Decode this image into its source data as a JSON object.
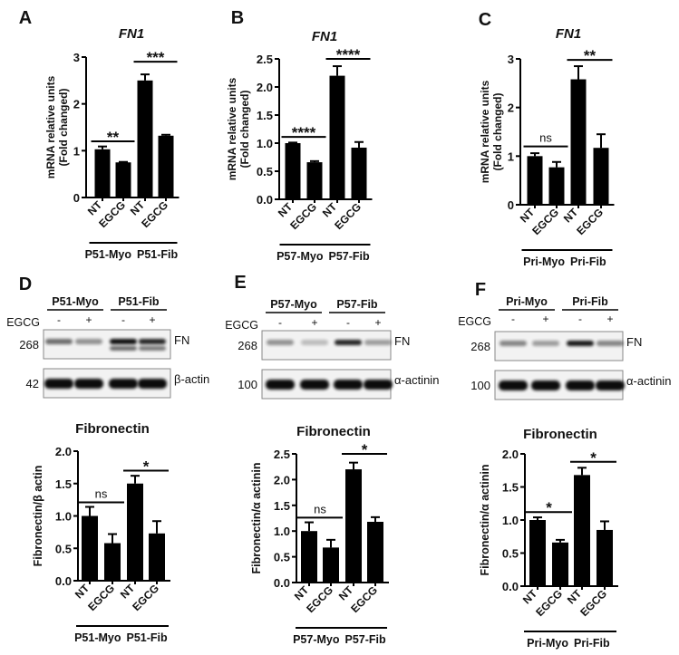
{
  "panels": {
    "A": {
      "letter": "A"
    },
    "B": {
      "letter": "B"
    },
    "C": {
      "letter": "C"
    },
    "D": {
      "letter": "D"
    },
    "E": {
      "letter": "E"
    },
    "F": {
      "letter": "F"
    }
  },
  "blots": [
    {
      "panel": "D",
      "groups": [
        "P51-Myo",
        "P51-Fib"
      ],
      "treatment_label": "EGCG",
      "lanes": [
        "-",
        "+",
        "-",
        "+"
      ],
      "rows": [
        {
          "marker": "268",
          "protein": "FN"
        },
        {
          "marker": "42",
          "protein": "β-actin"
        }
      ]
    },
    {
      "panel": "E",
      "groups": [
        "P57-Myo",
        "P57-Fib"
      ],
      "treatment_label": "EGCG",
      "lanes": [
        "-",
        "+",
        "-",
        "+"
      ],
      "rows": [
        {
          "marker": "268",
          "protein": "FN"
        },
        {
          "marker": "100",
          "protein": "α-actinin"
        }
      ]
    },
    {
      "panel": "F",
      "groups": [
        "Pri-Myo",
        "Pri-Fib"
      ],
      "treatment_label": "EGCG",
      "lanes": [
        "-",
        "+",
        "-",
        "+"
      ],
      "rows": [
        {
          "marker": "268",
          "protein": "FN"
        },
        {
          "marker": "100",
          "protein": "α-actinin"
        }
      ]
    }
  ],
  "chart_data": [
    {
      "panel": "A",
      "type": "bar",
      "title": "FN1",
      "title_italic": true,
      "ylabel": [
        "mRNA relative units",
        "(Fold changed)"
      ],
      "ylim": [
        0,
        3
      ],
      "yticks": [
        "0",
        "1",
        "2",
        "3"
      ],
      "categories": [
        "NT",
        "EGCG",
        "NT",
        "EGCG"
      ],
      "groups": [
        "P51-Myo",
        "P51-Fib"
      ],
      "values": [
        1.03,
        0.75,
        2.5,
        1.32
      ],
      "errors": [
        0.06,
        0.01,
        0.13,
        0.02
      ],
      "significance": [
        {
          "label": "**",
          "level": 1.2
        },
        {
          "label": "***",
          "level": 2.9
        }
      ]
    },
    {
      "panel": "B",
      "type": "bar",
      "title": "FN1",
      "title_italic": true,
      "ylabel": [
        "mRNA relative units",
        "(Fold changed)"
      ],
      "ylim": [
        0,
        2.5
      ],
      "yticks": [
        "0.0",
        "0.5",
        "1.0",
        "1.5",
        "2.0",
        "2.5"
      ],
      "categories": [
        "NT",
        "EGCG",
        "NT",
        "EGCG"
      ],
      "groups": [
        "P57-Myo",
        "P57-Fib"
      ],
      "values": [
        1.0,
        0.66,
        2.2,
        0.92
      ],
      "errors": [
        0.01,
        0.02,
        0.17,
        0.1
      ],
      "significance": [
        {
          "label": "****",
          "level": 1.11
        },
        {
          "label": "****",
          "level": 2.5
        }
      ]
    },
    {
      "panel": "C",
      "type": "bar",
      "title": "FN1",
      "title_italic": true,
      "ylabel": [
        "mRNA relative units",
        "(Fold changed)"
      ],
      "ylim": [
        0,
        3
      ],
      "yticks": [
        "0",
        "1",
        "2",
        "3"
      ],
      "categories": [
        "NT",
        "EGCG",
        "NT",
        "EGCG"
      ],
      "groups": [
        "Pri-Myo",
        "Pri-Fib"
      ],
      "values": [
        1.0,
        0.77,
        2.58,
        1.17
      ],
      "errors": [
        0.06,
        0.11,
        0.27,
        0.28
      ],
      "significance": [
        {
          "label": "ns",
          "level": 1.2
        },
        {
          "label": "**",
          "level": 2.98
        }
      ]
    },
    {
      "panel": "D",
      "type": "bar",
      "title": "Fibronectin",
      "title_italic": false,
      "ylabel": [
        "Fibronectin/β actin"
      ],
      "ylim": [
        0,
        2
      ],
      "yticks": [
        "0.0",
        "0.5",
        "1.0",
        "1.5",
        "2.0"
      ],
      "categories": [
        "NT",
        "EGCG",
        "NT",
        "EGCG"
      ],
      "groups": [
        "P51-Myo",
        "P51-Fib"
      ],
      "values": [
        1.0,
        0.58,
        1.5,
        0.73
      ],
      "errors": [
        0.14,
        0.14,
        0.12,
        0.19
      ],
      "significance": [
        {
          "label": "ns",
          "level": 1.21
        },
        {
          "label": "*",
          "level": 1.7
        }
      ]
    },
    {
      "panel": "E",
      "type": "bar",
      "title": "Fibronectin",
      "title_italic": false,
      "ylabel": [
        "Fibronectin/α actinin"
      ],
      "ylim": [
        0,
        2.5
      ],
      "yticks": [
        "0.0",
        "0.5",
        "1.0",
        "1.5",
        "2.0",
        "2.5"
      ],
      "categories": [
        "NT",
        "EGCG",
        "NT",
        "EGCG"
      ],
      "groups": [
        "P57-Myo",
        "P57-Fib"
      ],
      "values": [
        1.0,
        0.68,
        2.2,
        1.18
      ],
      "errors": [
        0.17,
        0.15,
        0.13,
        0.09
      ],
      "significance": [
        {
          "label": "ns",
          "level": 1.26
        },
        {
          "label": "*",
          "level": 2.5
        }
      ]
    },
    {
      "panel": "F",
      "type": "bar",
      "title": "Fibronectin",
      "title_italic": false,
      "ylabel": [
        "Fibronectin/α actinin"
      ],
      "ylim": [
        0,
        2
      ],
      "yticks": [
        "0.0",
        "0.5",
        "1.0",
        "1.5",
        "2.0"
      ],
      "categories": [
        "NT",
        "EGCG",
        "NT",
        "EGCG"
      ],
      "groups": [
        "Pri-Myo",
        "Pri-Fib"
      ],
      "values": [
        1.0,
        0.66,
        1.68,
        0.85
      ],
      "errors": [
        0.04,
        0.04,
        0.11,
        0.13
      ],
      "significance": [
        {
          "label": "*",
          "level": 1.12
        },
        {
          "label": "*",
          "level": 1.88
        }
      ]
    }
  ],
  "colors": {
    "bar": "#000000",
    "ns_text": "#555555"
  }
}
